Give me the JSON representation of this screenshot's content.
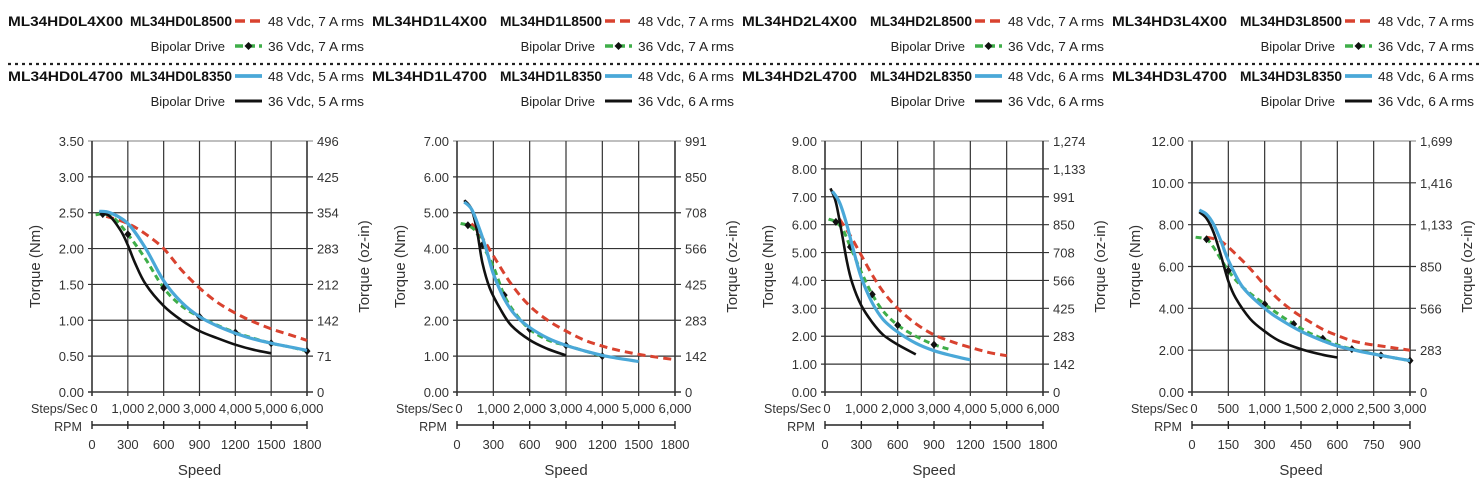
{
  "colors": {
    "red_dashed": "#d9422f",
    "green_dashed": "#3fae49",
    "blue": "#4aa8d8",
    "black": "#111111",
    "grid": "#333333"
  },
  "chart_data": [
    {
      "type": "line",
      "legend": {
        "row1": {
          "model_a": "ML34HD0L4X00",
          "model_b": "ML34HD0L8500"
        },
        "row2": {
          "label": "Bipolar Drive"
        },
        "row3": {
          "model_a": "ML34HD0L4700",
          "model_b": "ML34HD0L8350"
        },
        "row4": {
          "label": "Bipolar Drive"
        },
        "placement": "top"
      },
      "ylabel": "Torque (Nm)",
      "y2label": "Torque (oz-in)",
      "xlabel": "Speed",
      "x_axis1_label": "Steps/Sec",
      "x_axis2_label": "RPM",
      "ylim": [
        0,
        3.5
      ],
      "xlim": [
        0,
        6000
      ],
      "yticks": [
        "0.00",
        "0.50",
        "1.00",
        "1.50",
        "2.00",
        "2.50",
        "3.00",
        "3.50"
      ],
      "y2ticks": [
        "0",
        "71",
        "142",
        "212",
        "283",
        "354",
        "425",
        "496"
      ],
      "xticks": [
        "0",
        "1,000",
        "2,000",
        "3,000",
        "4,000",
        "5,000",
        "6,000"
      ],
      "rpmticks": [
        "0",
        "300",
        "600",
        "900",
        "1200",
        "1500",
        "1800"
      ],
      "grid": true,
      "series": [
        {
          "name": "48 Vdc, 7 A rms",
          "style": "red_dashed",
          "x": [
            400,
            1000,
            1500,
            2000,
            2500,
            3000,
            3500,
            4000,
            4500,
            5000,
            5500,
            6000
          ],
          "y": [
            2.45,
            2.35,
            2.2,
            2.0,
            1.7,
            1.45,
            1.25,
            1.1,
            0.98,
            0.88,
            0.8,
            0.72
          ]
        },
        {
          "name": "36 Vdc, 7 A rms",
          "style": "green_dashed",
          "x": [
            100,
            300,
            600,
            1000,
            1500,
            2000,
            2500,
            3000,
            3500,
            4000,
            4500,
            5000,
            5500,
            6000
          ],
          "y": [
            2.47,
            2.48,
            2.43,
            2.2,
            1.85,
            1.45,
            1.2,
            1.05,
            0.93,
            0.83,
            0.75,
            0.68,
            0.63,
            0.57
          ]
        },
        {
          "name": "48 Vdc, 5 A rms",
          "style": "blue",
          "x": [
            200,
            500,
            1000,
            1500,
            2000,
            2500,
            3000,
            3500,
            4000,
            4500,
            5000,
            5500,
            6000
          ],
          "y": [
            2.52,
            2.5,
            2.35,
            2.0,
            1.55,
            1.25,
            1.05,
            0.92,
            0.82,
            0.74,
            0.68,
            0.63,
            0.58
          ]
        },
        {
          "name": "36 Vdc, 5 A rms",
          "style": "black",
          "x": [
            200,
            500,
            800,
            1000,
            1200,
            1500,
            2000,
            2500,
            3000,
            3500,
            4000,
            4500,
            5000
          ],
          "y": [
            2.52,
            2.45,
            2.25,
            2.05,
            1.8,
            1.5,
            1.2,
            1.0,
            0.85,
            0.75,
            0.66,
            0.59,
            0.54
          ]
        }
      ]
    },
    {
      "type": "line",
      "legend": {
        "row1": {
          "model_a": "ML34HD1L4X00",
          "model_b": "ML34HD1L8500"
        },
        "row2": {
          "label": "Bipolar Drive"
        },
        "row3": {
          "model_a": "ML34HD1L4700",
          "model_b": "ML34HD1L8350"
        },
        "row4": {
          "label": "Bipolar Drive"
        },
        "placement": "top"
      },
      "ylabel": "Torque (Nm)",
      "y2label": "Torque (oz-in)",
      "xlabel": "Speed",
      "x_axis1_label": "Steps/Sec",
      "x_axis2_label": "RPM",
      "ylim": [
        0,
        7
      ],
      "xlim": [
        0,
        6000
      ],
      "yticks": [
        "0.00",
        "1.00",
        "2.00",
        "3.00",
        "4.00",
        "5.00",
        "6.00",
        "7.00"
      ],
      "y2ticks": [
        "0",
        "142",
        "283",
        "425",
        "566",
        "708",
        "850",
        "991"
      ],
      "xticks": [
        "0",
        "1,000",
        "2,000",
        "3,000",
        "4,000",
        "5,000",
        "6,000"
      ],
      "rpmticks": [
        "0",
        "300",
        "600",
        "900",
        "1200",
        "1500",
        "1800"
      ],
      "grid": true,
      "series": [
        {
          "name": "48 Vdc, 7 A rms",
          "style": "red_dashed",
          "x": [
            400,
            700,
            1000,
            1500,
            2000,
            2500,
            3000,
            3500,
            4000,
            4500,
            5000,
            5500,
            6000
          ],
          "y": [
            4.7,
            4.3,
            3.8,
            3.0,
            2.4,
            2.0,
            1.7,
            1.45,
            1.28,
            1.15,
            1.05,
            0.97,
            0.9
          ]
        },
        {
          "name": "36 Vdc, 7 A rms",
          "style": "green_dashed",
          "x": [
            100,
            300,
            500,
            700,
            1000,
            1300,
            1600,
            2000,
            2500,
            3000,
            3500,
            4000
          ],
          "y": [
            4.7,
            4.65,
            4.5,
            4.1,
            3.5,
            2.7,
            2.2,
            1.75,
            1.45,
            1.3,
            1.15,
            1.0
          ]
        },
        {
          "name": "48 Vdc, 6 A rms",
          "style": "blue",
          "x": [
            200,
            400,
            600,
            800,
            1000,
            1300,
            1600,
            2000,
            2500,
            3000,
            3500,
            4000,
            4500,
            5000
          ],
          "y": [
            5.3,
            5.1,
            4.6,
            4.0,
            3.3,
            2.6,
            2.15,
            1.8,
            1.5,
            1.3,
            1.15,
            1.02,
            0.93,
            0.85
          ]
        },
        {
          "name": "36 Vdc, 6 A rms",
          "style": "black",
          "x": [
            200,
            400,
            550,
            700,
            900,
            1200,
            1500,
            2000,
            2500,
            3000
          ],
          "y": [
            5.35,
            5.1,
            4.5,
            3.6,
            2.9,
            2.3,
            1.85,
            1.45,
            1.2,
            1.02
          ]
        }
      ]
    },
    {
      "type": "line",
      "legend": {
        "row1": {
          "model_a": "ML34HD2L4X00",
          "model_b": "ML34HD2L8500"
        },
        "row2": {
          "label": "Bipolar Drive"
        },
        "row3": {
          "model_a": "ML34HD2L4700",
          "model_b": "ML34HD2L8350"
        },
        "row4": {
          "label": "Bipolar Drive"
        },
        "placement": "top"
      },
      "ylabel": "Torque (Nm)",
      "y2label": "Torque (oz-in)",
      "xlabel": "Speed",
      "x_axis1_label": "Steps/Sec",
      "x_axis2_label": "RPM",
      "ylim": [
        0,
        9
      ],
      "xlim": [
        0,
        6000
      ],
      "yticks": [
        "0.00",
        "1.00",
        "2.00",
        "3.00",
        "4.00",
        "5.00",
        "6.00",
        "7.00",
        "8.00",
        "9.00"
      ],
      "y2ticks": [
        "0",
        "142",
        "283",
        "425",
        "566",
        "708",
        "850",
        "991",
        "1,133",
        "1,274"
      ],
      "xticks": [
        "0",
        "1,000",
        "2,000",
        "3,000",
        "4,000",
        "5,000",
        "6,000"
      ],
      "rpmticks": [
        "0",
        "300",
        "600",
        "900",
        "1200",
        "1500",
        "1800"
      ],
      "grid": true,
      "series": [
        {
          "name": "48 Vdc, 7 A rms",
          "style": "red_dashed",
          "x": [
            400,
            700,
            1000,
            1300,
            1600,
            2000,
            2500,
            3000,
            3500,
            4000,
            4500,
            5000
          ],
          "y": [
            6.2,
            5.6,
            4.9,
            4.2,
            3.6,
            3.0,
            2.45,
            2.05,
            1.8,
            1.6,
            1.42,
            1.3
          ]
        },
        {
          "name": "36 Vdc, 7 A rms",
          "style": "green_dashed",
          "x": [
            100,
            300,
            500,
            700,
            1000,
            1300,
            1600,
            2000,
            2500,
            3000,
            3500
          ],
          "y": [
            6.2,
            6.1,
            5.8,
            5.2,
            4.3,
            3.5,
            2.9,
            2.4,
            2.0,
            1.7,
            1.5
          ]
        },
        {
          "name": "48 Vdc, 6 A rms",
          "style": "blue",
          "x": [
            200,
            400,
            600,
            800,
            1000,
            1300,
            1600,
            2000,
            2500,
            3000,
            3500,
            4000
          ],
          "y": [
            7.2,
            6.8,
            6.0,
            5.0,
            4.1,
            3.2,
            2.6,
            2.15,
            1.75,
            1.48,
            1.3,
            1.15
          ]
        },
        {
          "name": "36 Vdc, 6 A rms",
          "style": "black",
          "x": [
            150,
            300,
            450,
            600,
            750,
            1000,
            1300,
            1600,
            2000,
            2500
          ],
          "y": [
            7.3,
            6.8,
            5.8,
            4.7,
            3.9,
            3.1,
            2.5,
            2.05,
            1.7,
            1.35
          ]
        }
      ]
    },
    {
      "type": "line",
      "legend": {
        "row1": {
          "model_a": "ML34HD3L4X00",
          "model_b": "ML34HD3L8500"
        },
        "row2": {
          "label": "Bipolar Drive"
        },
        "row3": {
          "model_a": "ML34HD3L4700",
          "model_b": "ML34HD3L8350"
        },
        "row4": {
          "label": "Bipolar Drive"
        },
        "placement": "top"
      },
      "ylabel": "Torque (Nm)",
      "y2label": "Torque (oz-in)",
      "xlabel": "Speed",
      "x_axis1_label": "Steps/Sec",
      "x_axis2_label": "RPM",
      "ylim": [
        0,
        12
      ],
      "xlim": [
        0,
        3000
      ],
      "yticks": [
        "0.00",
        "2.00",
        "4.00",
        "6.00",
        "8.00",
        "10.00",
        "12.00"
      ],
      "y2ticks": [
        "0",
        "283",
        "566",
        "850",
        "1,133",
        "1,416",
        "1,699"
      ],
      "xticks": [
        "0",
        "500",
        "1,000",
        "1,500",
        "2,000",
        "2,500",
        "3,000"
      ],
      "rpmticks": [
        "0",
        "150",
        "300",
        "450",
        "600",
        "750",
        "900"
      ],
      "grid": true,
      "series": [
        {
          "name": "48 Vdc, 7 A rms",
          "style": "red_dashed",
          "x": [
            200,
            400,
            600,
            800,
            1000,
            1200,
            1400,
            1600,
            1800,
            2000,
            2200,
            2400,
            2600,
            2800,
            3000
          ],
          "y": [
            7.4,
            7.2,
            6.6,
            5.9,
            5.1,
            4.4,
            3.85,
            3.4,
            3.0,
            2.7,
            2.45,
            2.3,
            2.2,
            2.1,
            2.0
          ]
        },
        {
          "name": "36 Vdc, 7 A rms",
          "style": "green_dashed",
          "x": [
            50,
            200,
            300,
            500,
            700,
            1000,
            1200,
            1400,
            1600,
            1800,
            2000,
            2200,
            2400,
            2600,
            2800,
            3000
          ],
          "y": [
            7.4,
            7.3,
            6.9,
            5.8,
            5.0,
            4.2,
            3.7,
            3.25,
            2.85,
            2.55,
            2.25,
            2.05,
            1.9,
            1.75,
            1.62,
            1.5
          ]
        },
        {
          "name": "48 Vdc, 6 A rms",
          "style": "blue",
          "x": [
            100,
            200,
            300,
            400,
            500,
            700,
            1000,
            1200,
            1500,
            1800,
            2000,
            2300,
            2600,
            3000
          ],
          "y": [
            8.7,
            8.5,
            8.0,
            7.2,
            6.3,
            5.0,
            4.0,
            3.5,
            2.9,
            2.45,
            2.2,
            1.95,
            1.75,
            1.5
          ]
        },
        {
          "name": "36 Vdc, 6 A rms",
          "style": "black",
          "x": [
            100,
            200,
            300,
            400,
            500,
            600,
            800,
            1000,
            1200,
            1500,
            1800,
            2000
          ],
          "y": [
            8.6,
            8.3,
            7.6,
            6.5,
            5.3,
            4.5,
            3.5,
            2.9,
            2.45,
            2.05,
            1.78,
            1.65
          ]
        }
      ]
    }
  ]
}
